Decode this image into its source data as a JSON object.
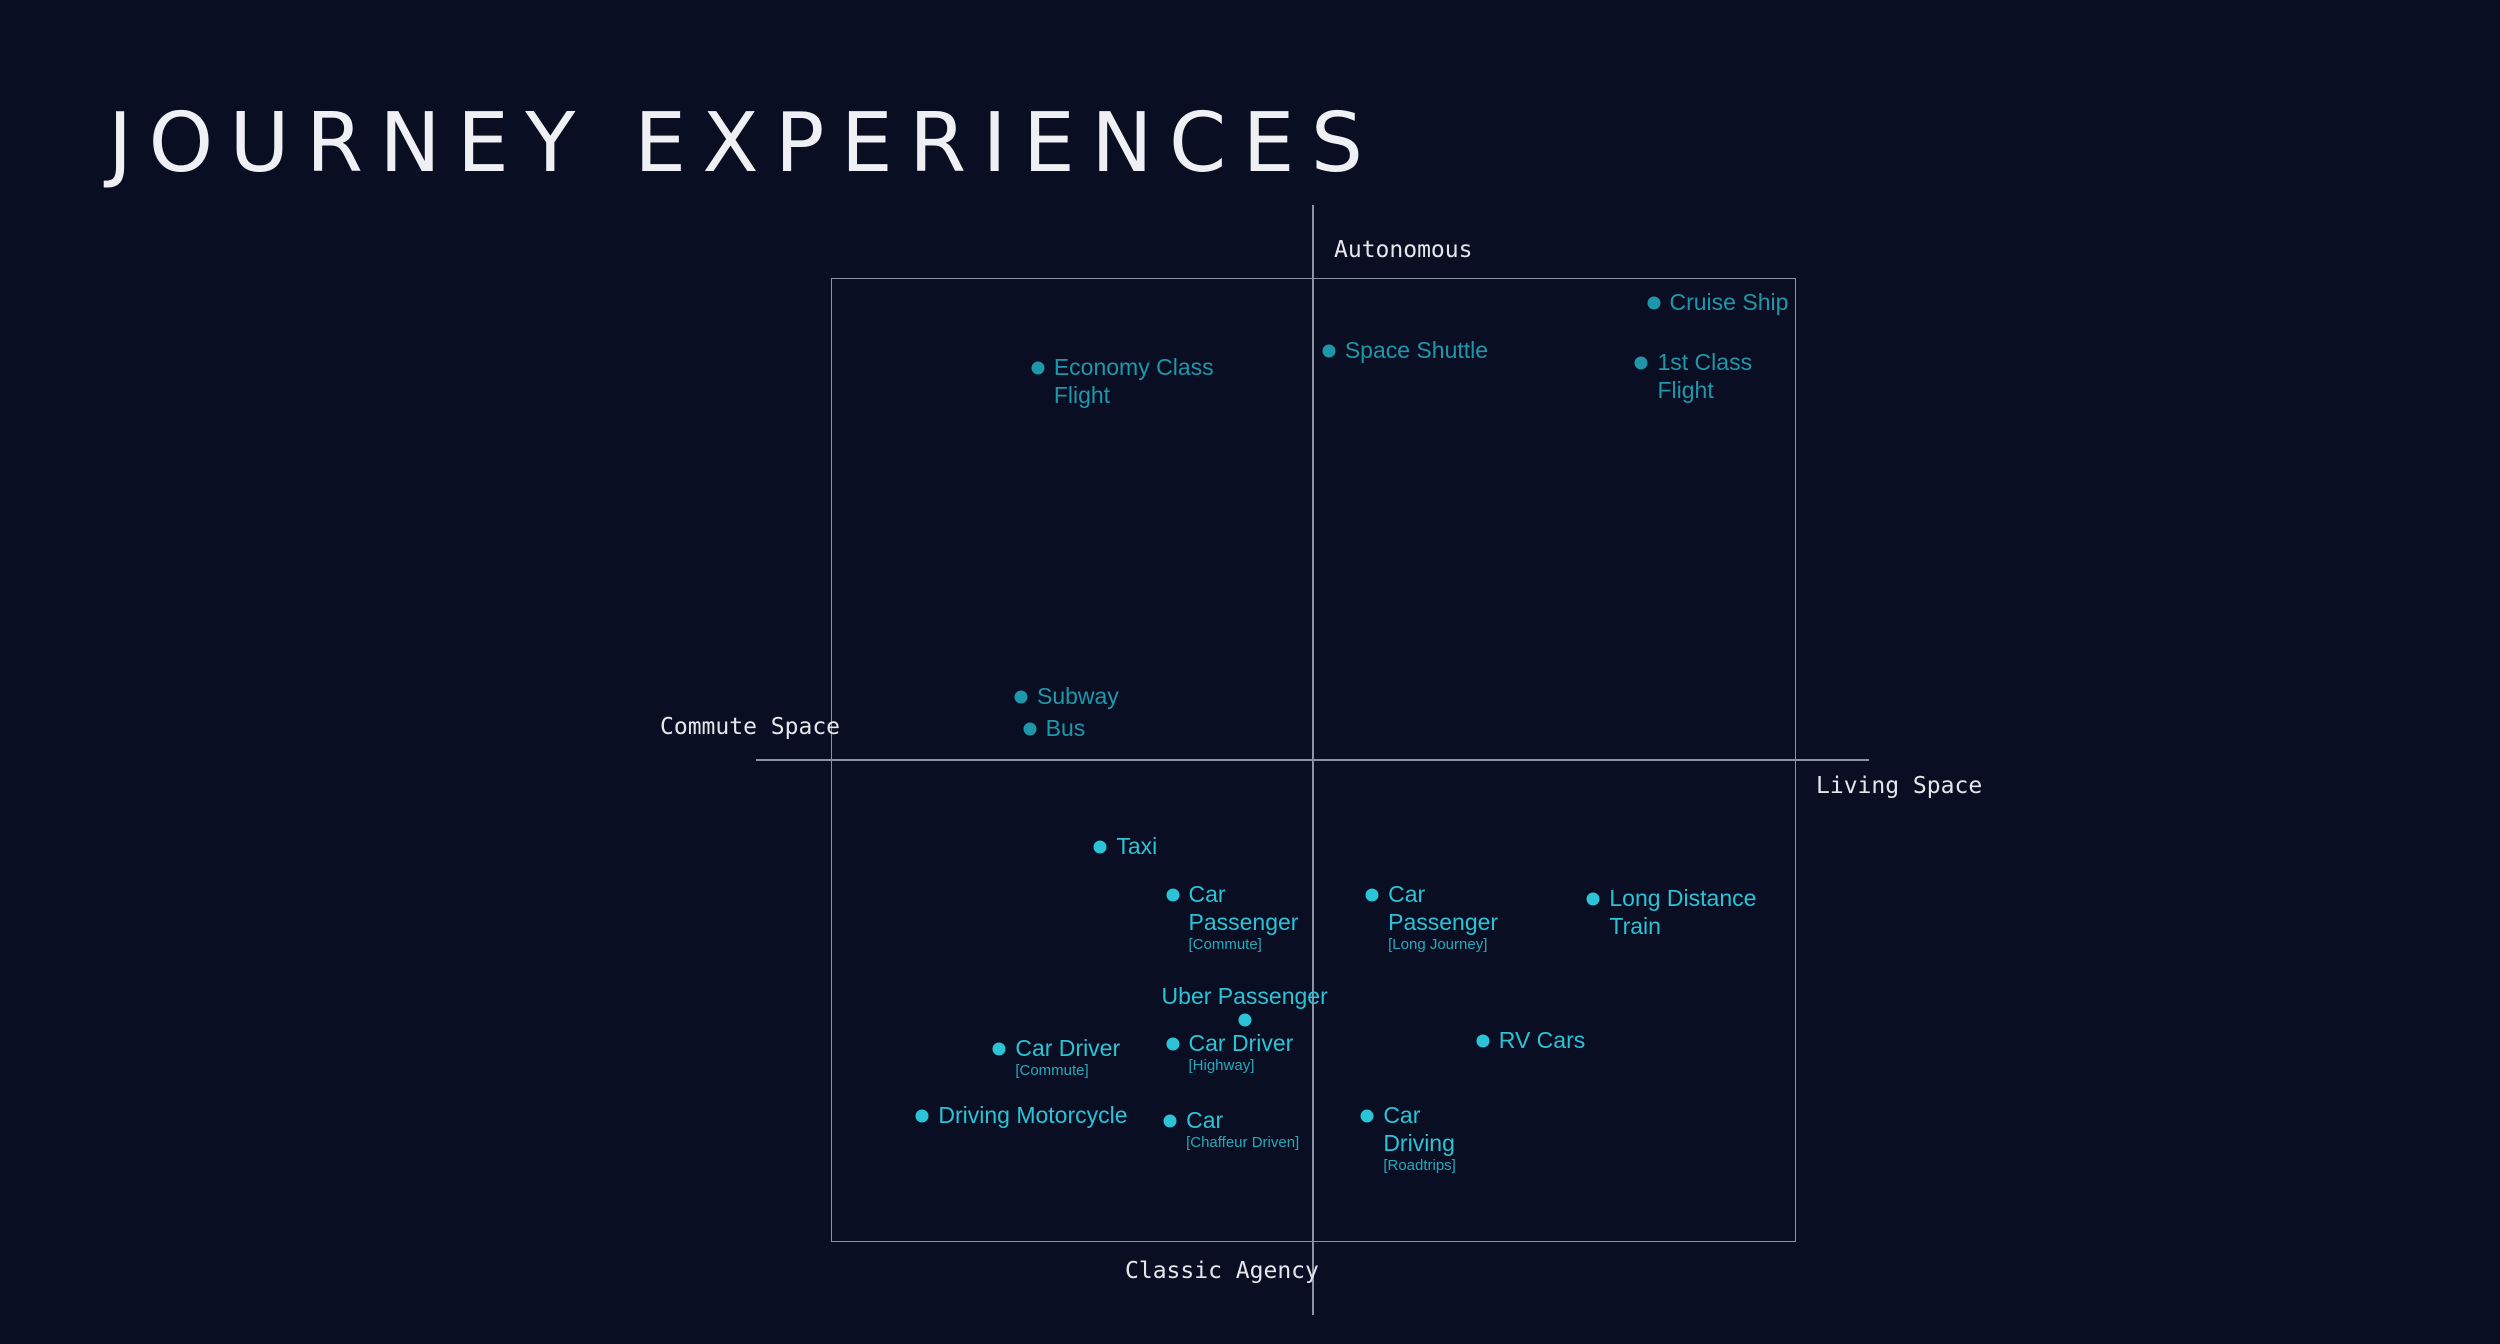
{
  "title": "JOURNEY EXPERIENCES",
  "axes": {
    "top": "Autonomous",
    "bottom": "Classic Agency",
    "left": "Commute Space",
    "right": "Living Space"
  },
  "colors": {
    "background": "#090e22",
    "text": "#eef0f4",
    "grid": "#8d92a3",
    "point_bright": "#2cc3d6",
    "point_muted": "#1f97ab"
  },
  "points": [
    {
      "id": "cruise-ship",
      "lines": [
        "Cruise Ship"
      ],
      "sub": "",
      "x": 0.71,
      "y": 0.95,
      "tone": "muted",
      "label_pos": "right"
    },
    {
      "id": "space-shuttle",
      "lines": [
        "Space Shuttle"
      ],
      "sub": "",
      "x": 0.035,
      "y": 0.85,
      "tone": "muted",
      "label_pos": "right"
    },
    {
      "id": "economy-class-flight",
      "lines": [
        "Economy Class",
        "Flight"
      ],
      "sub": "",
      "x": -0.57,
      "y": 0.815,
      "tone": "muted",
      "label_pos": "right"
    },
    {
      "id": "first-class-flight",
      "lines": [
        "1st Class",
        "Flight"
      ],
      "sub": "",
      "x": 0.685,
      "y": 0.825,
      "tone": "muted",
      "label_pos": "right"
    },
    {
      "id": "subway",
      "lines": [
        "Subway"
      ],
      "sub": "",
      "x": -0.605,
      "y": 0.13,
      "tone": "muted",
      "label_pos": "right"
    },
    {
      "id": "bus",
      "lines": [
        "Bus"
      ],
      "sub": "",
      "x": -0.587,
      "y": 0.065,
      "tone": "muted",
      "label_pos": "right"
    },
    {
      "id": "taxi",
      "lines": [
        "Taxi"
      ],
      "sub": "",
      "x": -0.44,
      "y": -0.18,
      "tone": "bright",
      "label_pos": "right"
    },
    {
      "id": "car-passenger-commute",
      "lines": [
        "Car",
        "Passenger"
      ],
      "sub": "[Commute]",
      "x": -0.29,
      "y": -0.28,
      "tone": "bright",
      "label_pos": "right"
    },
    {
      "id": "car-passenger-long-journey",
      "lines": [
        "Car",
        "Passenger"
      ],
      "sub": "[Long Journey]",
      "x": 0.125,
      "y": -0.28,
      "tone": "bright",
      "label_pos": "right"
    },
    {
      "id": "long-distance-train",
      "lines": [
        "Long Distance",
        "Train"
      ],
      "sub": "",
      "x": 0.585,
      "y": -0.29,
      "tone": "bright",
      "label_pos": "right"
    },
    {
      "id": "uber-passenger",
      "lines": [
        "Uber Passenger"
      ],
      "sub": "",
      "x": -0.14,
      "y": -0.54,
      "tone": "bright",
      "label_pos": "above"
    },
    {
      "id": "rv-cars",
      "lines": [
        "RV Cars"
      ],
      "sub": "",
      "x": 0.355,
      "y": -0.585,
      "tone": "bright",
      "label_pos": "right"
    },
    {
      "id": "car-driver-commute",
      "lines": [
        "Car Driver"
      ],
      "sub": "[Commute]",
      "x": -0.65,
      "y": -0.6,
      "tone": "bright",
      "label_pos": "right"
    },
    {
      "id": "car-driver-highway",
      "lines": [
        "Car Driver"
      ],
      "sub": "[Highway]",
      "x": -0.29,
      "y": -0.59,
      "tone": "bright",
      "label_pos": "right"
    },
    {
      "id": "driving-motorcycle",
      "lines": [
        "Driving Motorcycle"
      ],
      "sub": "",
      "x": -0.81,
      "y": -0.74,
      "tone": "bright",
      "label_pos": "right"
    },
    {
      "id": "car-chauffeur-driven",
      "lines": [
        "Car"
      ],
      "sub": "[Chaffeur Driven]",
      "x": -0.295,
      "y": -0.75,
      "tone": "bright",
      "label_pos": "right"
    },
    {
      "id": "car-driving-roadtrips",
      "lines": [
        "Car",
        "Driving"
      ],
      "sub": "[Roadtrips]",
      "x": 0.115,
      "y": -0.74,
      "tone": "bright",
      "label_pos": "right"
    }
  ]
}
